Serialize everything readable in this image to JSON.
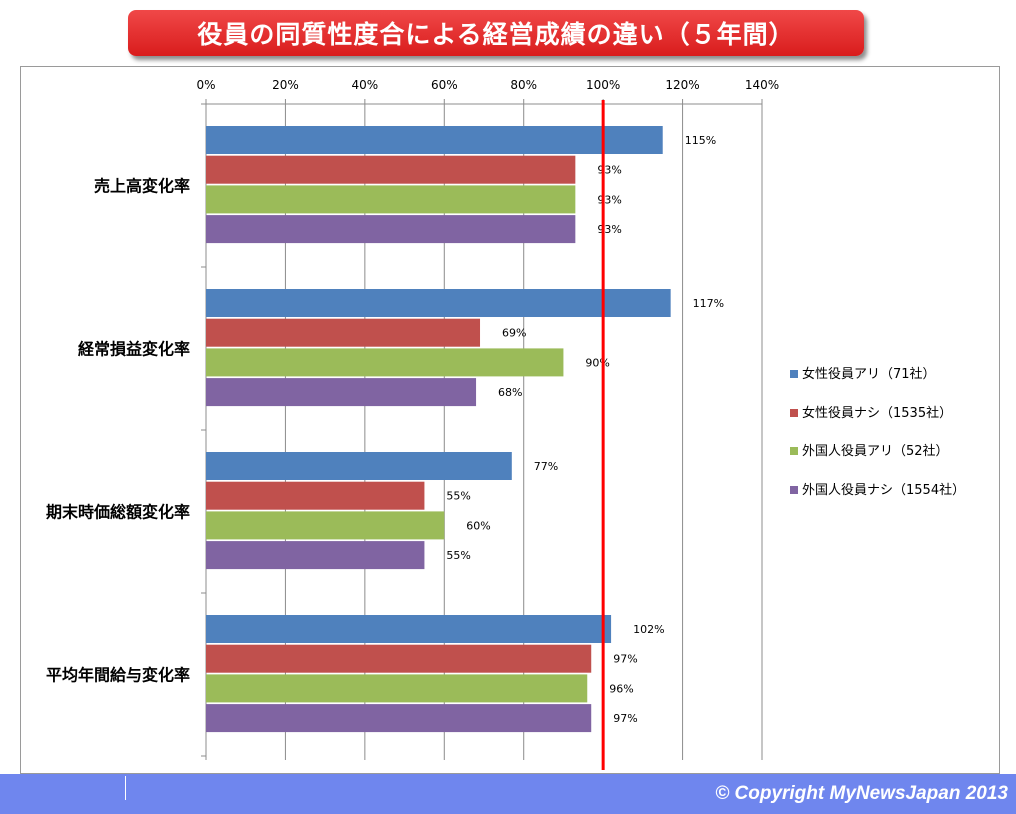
{
  "title": "役員の同質性度合による経営成績の違い（５年間）",
  "footer": {
    "copyright": "© Copyright   MyNewsJapan 2013"
  },
  "chart_data": {
    "type": "bar",
    "orientation": "horizontal",
    "title": "役員の同質性度合による経営成績の違い（５年間）",
    "categories": [
      "売上高変化率",
      "経常損益変化率",
      "期末時価総額変化率",
      "平均年間給与変化率"
    ],
    "series": [
      {
        "name": "女性役員アリ（71社）",
        "color": "#4f81bd",
        "values": [
          115,
          117,
          77,
          102
        ]
      },
      {
        "name": "女性役員ナシ（1535社）",
        "color": "#c0504d",
        "values": [
          93,
          69,
          55,
          97
        ]
      },
      {
        "name": "外国人役員アリ（52社）",
        "color": "#9bbb59",
        "values": [
          93,
          90,
          60,
          96
        ]
      },
      {
        "name": "外国人役員ナシ（1554社）",
        "color": "#8064a2",
        "values": [
          93,
          68,
          55,
          97
        ]
      }
    ],
    "data_labels": [
      [
        "115%",
        "117%",
        "77%",
        "102%"
      ],
      [
        "93%",
        "69%",
        "55%",
        "97%"
      ],
      [
        "93%",
        "90%",
        "60%",
        "96%"
      ],
      [
        "93%",
        "68%",
        "55%",
        "97%"
      ]
    ],
    "x_ticks": [
      "0%",
      "20%",
      "40%",
      "60%",
      "80%",
      "100%",
      "120%",
      "140%"
    ],
    "xlim": [
      0,
      140
    ],
    "reference_line": {
      "value": 100,
      "color": "#ff0000"
    },
    "grid": true,
    "legend_position": "right",
    "xlabel": "",
    "ylabel": ""
  }
}
